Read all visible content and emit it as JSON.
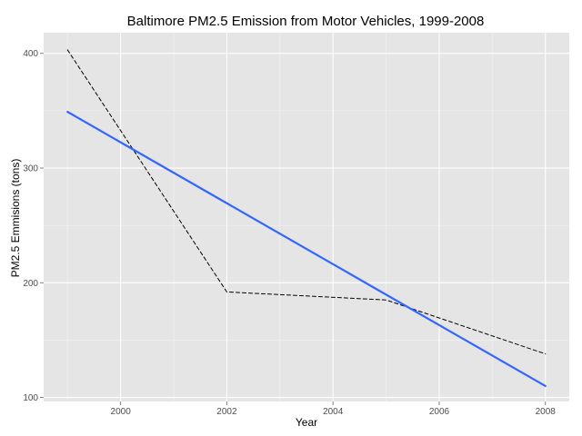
{
  "chart_data": {
    "type": "line",
    "title": "Baltimore PM2.5 Emission from Motor Vehicles, 1999-2008",
    "xlabel": "Year",
    "ylabel": "PM2.5 Emmisions (tons)",
    "xlim": [
      1998.55,
      2008.45
    ],
    "ylim": [
      96.5,
      418
    ],
    "x_ticks": [
      2000,
      2002,
      2004,
      2006,
      2008
    ],
    "x_tick_labels": [
      "2000",
      "2002",
      "2004",
      "2006",
      "2008"
    ],
    "y_ticks": [
      100,
      200,
      300,
      400
    ],
    "y_tick_labels": [
      "100",
      "200",
      "300",
      "400"
    ],
    "grid": true,
    "legend": "none",
    "series": [
      {
        "style": "dashed",
        "color": "#000000",
        "x": [
          1999,
          2002,
          2005,
          2008
        ],
        "y": [
          403,
          192,
          185,
          138
        ]
      },
      {
        "style": "solid",
        "color": "#3366ff",
        "x": [
          1999,
          2008
        ],
        "y": [
          349,
          110
        ]
      }
    ]
  },
  "colors": {
    "panel_background": "#e5e5e5",
    "grid_major": "#ffffff",
    "grid_minor": "#f2f2f2",
    "tick_text": "#4d4d4d"
  }
}
